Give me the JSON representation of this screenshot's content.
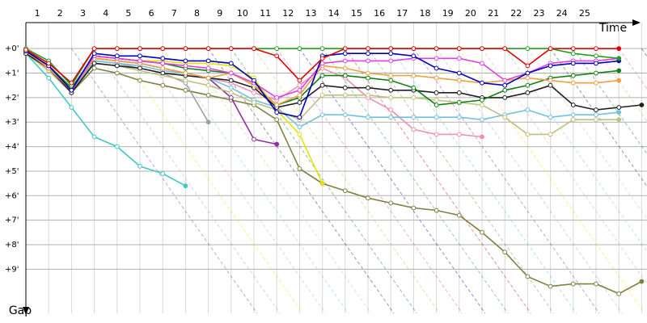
{
  "chart_data": {
    "type": "line",
    "x_label": "Time",
    "y_label": "Gap",
    "categories": [
      null,
      "1",
      "2",
      "3",
      "4",
      "5",
      "6",
      "7",
      "8",
      "9",
      "10",
      "11",
      "12",
      "13",
      "14",
      "15",
      "16",
      "17",
      "18",
      "19",
      "20",
      "21",
      "22",
      "23",
      "24",
      "25",
      null,
      null
    ],
    "ylim": [
      -1.06,
      10.8
    ],
    "yticks": [
      {
        "value": 0,
        "label": "+0'"
      },
      {
        "value": 1,
        "label": "+1'"
      },
      {
        "value": 2,
        "label": "+2'"
      },
      {
        "value": 3,
        "label": "+3'"
      },
      {
        "value": 4,
        "label": "+4'"
      },
      {
        "value": 5,
        "label": "+5'"
      },
      {
        "value": 6,
        "label": "+6'"
      },
      {
        "value": 7,
        "label": "+7'"
      },
      {
        "value": 8,
        "label": "+8'"
      },
      {
        "value": 9,
        "label": "+9'"
      }
    ],
    "grid": true,
    "series": [
      {
        "color": "#808040",
        "values": [
          0.2,
          0.9,
          1.8,
          0.8,
          1.0,
          1.3,
          1.5,
          1.7,
          1.9,
          2.1,
          2.3,
          2.9,
          4.9,
          5.5,
          5.8,
          6.1,
          6.3,
          6.5,
          6.6,
          6.8,
          7.5,
          8.3,
          9.3,
          9.7,
          9.6,
          9.6,
          10.0,
          9.5
        ]
      },
      {
        "color": "#40c8c8",
        "values": [
          0.2,
          1.2,
          2.4,
          3.6,
          4.0,
          4.8,
          5.1,
          5.6,
          null,
          null,
          null,
          null,
          null,
          null,
          null,
          null,
          null,
          null,
          null,
          null,
          null,
          null,
          null,
          null,
          null,
          null,
          null,
          null
        ]
      },
      {
        "color": "#9030a0",
        "values": [
          0.1,
          0.7,
          1.8,
          0.4,
          0.5,
          0.6,
          0.8,
          1.0,
          1.2,
          2.0,
          3.7,
          3.9,
          null,
          null,
          null,
          null,
          null,
          null,
          null,
          null,
          null,
          null,
          null,
          null,
          null,
          null,
          null,
          null
        ]
      },
      {
        "color": "#a0a0a0",
        "values": [
          0.1,
          0.8,
          1.7,
          0.5,
          0.6,
          0.8,
          1.0,
          1.4,
          3.0,
          null,
          null,
          null,
          null,
          null,
          null,
          null,
          null,
          null,
          null,
          null,
          null,
          null,
          null,
          null,
          null,
          null,
          null,
          null
        ]
      },
      {
        "color": "#e8e000",
        "values": [
          0.1,
          0.8,
          1.7,
          0.3,
          0.4,
          0.5,
          0.5,
          0.6,
          0.6,
          0.7,
          1.2,
          2.5,
          3.5,
          5.5,
          null,
          null,
          null,
          null,
          null,
          null,
          null,
          null,
          null,
          null,
          null,
          null,
          null,
          null
        ]
      },
      {
        "color": "#f090b0",
        "values": [
          0.1,
          0.7,
          1.6,
          0.4,
          0.5,
          0.6,
          0.8,
          1.0,
          1.2,
          1.4,
          1.8,
          2.1,
          1.5,
          0.8,
          1.2,
          2.0,
          2.5,
          3.3,
          3.5,
          3.5,
          3.6,
          null,
          null,
          null,
          null,
          null,
          null,
          null
        ]
      },
      {
        "color": "#70c0e0",
        "values": [
          0.2,
          0.9,
          1.8,
          0.5,
          0.6,
          0.7,
          0.9,
          1.0,
          1.2,
          1.6,
          2.1,
          2.4,
          3.2,
          2.7,
          2.7,
          2.8,
          2.8,
          2.8,
          2.8,
          2.8,
          2.9,
          2.7,
          2.5,
          2.8,
          2.7,
          2.7,
          2.6,
          null
        ]
      },
      {
        "color": "#c0c080",
        "values": [
          0.2,
          0.9,
          1.8,
          0.6,
          0.7,
          0.9,
          1.1,
          1.3,
          1.5,
          1.8,
          2.2,
          2.5,
          2.9,
          1.9,
          1.9,
          1.9,
          2.0,
          2.0,
          2.1,
          2.2,
          2.3,
          2.8,
          3.5,
          3.5,
          2.9,
          2.9,
          2.9,
          null
        ]
      },
      {
        "color": "#202020",
        "values": [
          0.2,
          0.8,
          1.8,
          0.6,
          0.7,
          0.8,
          1.0,
          1.1,
          1.2,
          1.3,
          1.6,
          2.4,
          2.2,
          1.5,
          1.6,
          1.6,
          1.7,
          1.7,
          1.8,
          1.8,
          2.0,
          2.0,
          1.8,
          1.5,
          2.3,
          2.5,
          2.4,
          2.3
        ]
      },
      {
        "color": "#108010",
        "values": [
          0.1,
          0.7,
          1.6,
          0.3,
          0.4,
          0.5,
          0.6,
          0.8,
          0.9,
          1.0,
          1.5,
          2.3,
          2.0,
          1.1,
          1.1,
          1.2,
          1.3,
          1.6,
          2.3,
          2.2,
          2.1,
          1.7,
          1.5,
          1.2,
          1.1,
          1.0,
          0.9,
          null
        ]
      },
      {
        "color": "#f0a040",
        "values": [
          0.1,
          0.8,
          1.7,
          0.4,
          0.5,
          0.6,
          0.8,
          1.0,
          1.2,
          1.0,
          1.5,
          2.3,
          1.9,
          0.7,
          0.8,
          1.0,
          1.1,
          1.1,
          1.2,
          1.3,
          1.4,
          1.3,
          1.2,
          1.3,
          1.4,
          1.4,
          1.3,
          null
        ]
      },
      {
        "color": "#e040e0",
        "values": [
          0.1,
          0.7,
          1.7,
          0.3,
          0.4,
          0.5,
          0.6,
          0.7,
          0.8,
          1.0,
          1.4,
          2.0,
          1.7,
          0.6,
          0.5,
          0.5,
          0.5,
          0.4,
          0.4,
          0.4,
          0.6,
          1.3,
          1.0,
          0.6,
          0.5,
          0.5,
          0.4,
          null
        ]
      },
      {
        "color": "#0000c0",
        "values": [
          0.1,
          0.7,
          1.7,
          0.2,
          0.3,
          0.3,
          0.4,
          0.5,
          0.5,
          0.6,
          1.3,
          2.6,
          2.8,
          0.3,
          0.2,
          0.2,
          0.2,
          0.3,
          0.8,
          1.0,
          1.4,
          1.5,
          1.0,
          0.7,
          0.6,
          0.6,
          0.5,
          null
        ]
      },
      {
        "color": "#20a020",
        "values": [
          0.0,
          0.5,
          1.5,
          0.0,
          0.0,
          0.0,
          0.0,
          0.0,
          0.0,
          0.0,
          0.0,
          0.0,
          0.0,
          0.0,
          0.0,
          0.0,
          0.0,
          0.0,
          0.0,
          0.0,
          0.0,
          0.0,
          0.0,
          0.0,
          0.2,
          0.3,
          0.4,
          null
        ]
      },
      {
        "color": "#e00000",
        "values": [
          0.05,
          0.6,
          1.4,
          0.0,
          0.0,
          0.0,
          0.0,
          0.0,
          0.0,
          0.0,
          0.0,
          0.3,
          1.3,
          0.4,
          0.0,
          0.0,
          0.0,
          0.0,
          0.0,
          0.0,
          0.0,
          0.0,
          0.7,
          0.0,
          0.0,
          0.0,
          0.0,
          null
        ]
      }
    ]
  }
}
